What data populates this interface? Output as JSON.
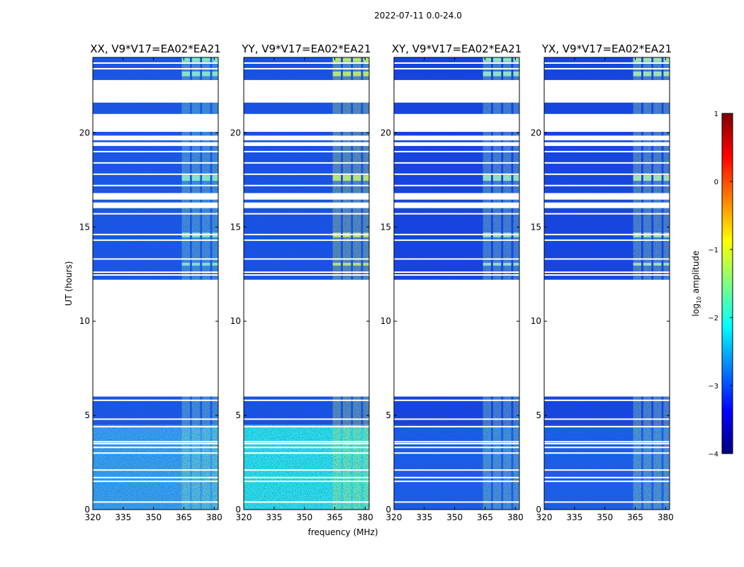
{
  "figure_title": "2022-07-11 0.0-24.0",
  "chart_data": {
    "type": "heatmap",
    "suptitle": "2022-07-11 0.0-24.0",
    "xlabel": "frequency (MHz)",
    "ylabel": "UT (hours)",
    "xlim": [
      320,
      382
    ],
    "ylim": [
      0,
      24
    ],
    "xticks": [
      320,
      335,
      350,
      365,
      380
    ],
    "yticks": [
      0,
      5,
      10,
      15,
      20
    ],
    "panels": [
      {
        "title": "XX, V9*V17=EA02*EA21",
        "base": "#1e55f0",
        "low_block": "#3aa0f5",
        "rfi": "#8ef2c8"
      },
      {
        "title": "YY, V9*V17=EA02*EA21",
        "base": "#1c50ee",
        "low_block": "#2fe0f0",
        "rfi": "#c8f26a"
      },
      {
        "title": "XY, V9*V17=EA02*EA21",
        "base": "#1a40ea",
        "low_block": "#1e5cf2",
        "rfi": "#9ef2c0"
      },
      {
        "title": "YX, V9*V17=EA02*EA21",
        "base": "#1a42ea",
        "low_block": "#1f5ef2",
        "rfi": "#aef2b0"
      }
    ],
    "data_blocks_hours": [
      [
        0,
        6
      ],
      [
        12.2,
        16.0
      ],
      [
        16.3,
        16.45
      ],
      [
        16.8,
        19.3
      ],
      [
        19.5,
        19.6
      ],
      [
        19.85,
        20.05
      ],
      [
        21.0,
        21.6
      ],
      [
        22.8,
        24.0
      ]
    ],
    "gap_lines_hours": [
      0.4,
      1.5,
      1.7,
      2.1,
      3.0,
      3.3,
      3.5,
      3.6,
      4.4,
      4.8,
      5.8,
      12.45,
      12.6,
      13.3,
      14.3,
      14.6,
      15.7,
      17.2,
      17.8,
      18.4,
      19.0,
      23.4,
      23.7
    ],
    "rfi_channels_mhz": [
      [
        364,
        368
      ],
      [
        369,
        373
      ],
      [
        374,
        378
      ],
      [
        379,
        382
      ]
    ],
    "colorbar": {
      "label": "log10 amplitude",
      "label_text": "log",
      "label_sub": "10",
      "label_rest": " amplitude",
      "range": [
        -4,
        1
      ],
      "ticks": [
        "1",
        "0",
        "−1",
        "−2",
        "−3",
        "−4"
      ],
      "colormap": "jet",
      "stops": [
        "#00007f",
        "#0000ff",
        "#007fff",
        "#00ffff",
        "#7fff7f",
        "#ffff00",
        "#ff7f00",
        "#ff0000",
        "#7f0000"
      ]
    }
  }
}
